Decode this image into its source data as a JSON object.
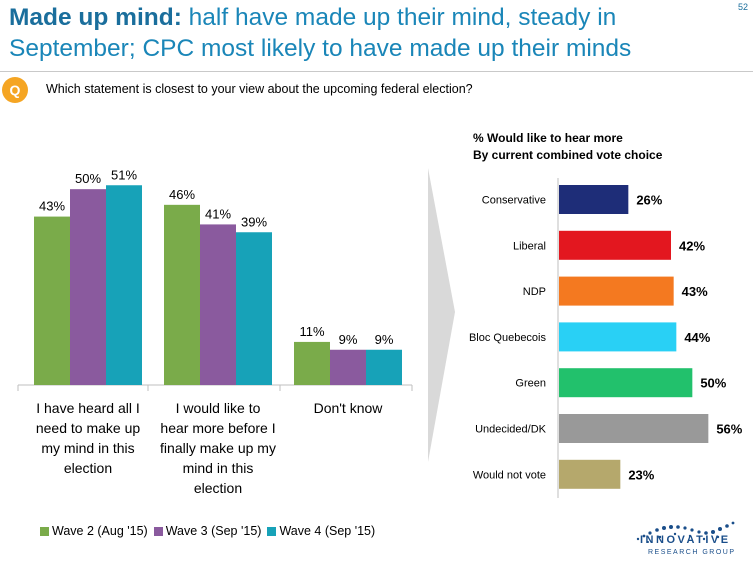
{
  "page_number": "52",
  "title_bold": "Made up mind:",
  "title_rest": " half have made up their mind, steady in September; CPC most likely to have made up their minds",
  "question_badge": "Q",
  "question": "Which statement is closest to your view about the upcoming federal election?",
  "right_title_line1": "% Would like to hear more",
  "right_title_line2": "By current combined vote choice",
  "logo": {
    "name": "INNOVATIVE",
    "sub": "RESEARCH GROUP"
  },
  "chart_data": [
    {
      "type": "bar",
      "categories": [
        [
          "I have heard all I",
          "need to make up",
          "my mind in this",
          "election"
        ],
        [
          "I would like to",
          "hear more before I",
          "finally make up my",
          "mind in this",
          "election"
        ],
        [
          "Don't know"
        ]
      ],
      "series": [
        {
          "name": "Wave 2 (Aug '15)",
          "values": [
            43,
            46,
            11
          ],
          "color": "#7aab4a"
        },
        {
          "name": "Wave 3 (Sep '15)",
          "values": [
            50,
            41,
            9
          ],
          "color": "#8a5a9e"
        },
        {
          "name": "Wave 4 (Sep '15)",
          "values": [
            51,
            39,
            9
          ],
          "color": "#17a2b8"
        }
      ],
      "value_suffix": "%",
      "ylim": [
        0,
        60
      ],
      "legend": "bottom"
    },
    {
      "type": "bar",
      "orientation": "horizontal",
      "categories": [
        "Conservative",
        "Liberal",
        "NDP",
        "Bloc Quebecois",
        "Green",
        "Undecided/DK",
        "Would not vote"
      ],
      "values": [
        26,
        42,
        43,
        44,
        50,
        56,
        23
      ],
      "colors": [
        "#1e2d78",
        "#e3171f",
        "#f47920",
        "#29d0f5",
        "#22c16c",
        "#999999",
        "#b5a86c"
      ],
      "value_suffix": "%",
      "xlim": [
        0,
        60
      ]
    }
  ]
}
